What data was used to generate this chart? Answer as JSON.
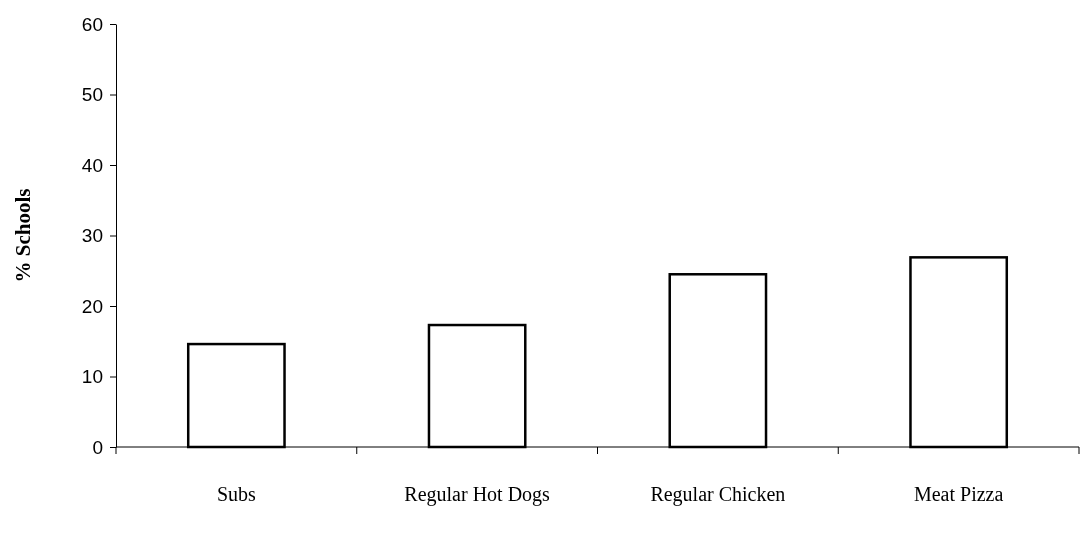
{
  "chart_data": {
    "type": "bar",
    "ylabel": "% Schools",
    "categories": [
      "Subs",
      "Regular Hot Dogs",
      "Regular Chicken",
      "Meat Pizza"
    ],
    "values": [
      14.6,
      17.3,
      24.5,
      26.9
    ],
    "color": "#ffffff",
    "ylim": [
      0,
      60
    ],
    "yticks": [
      0,
      10,
      20,
      30,
      40,
      50,
      60
    ],
    "grid": false
  }
}
